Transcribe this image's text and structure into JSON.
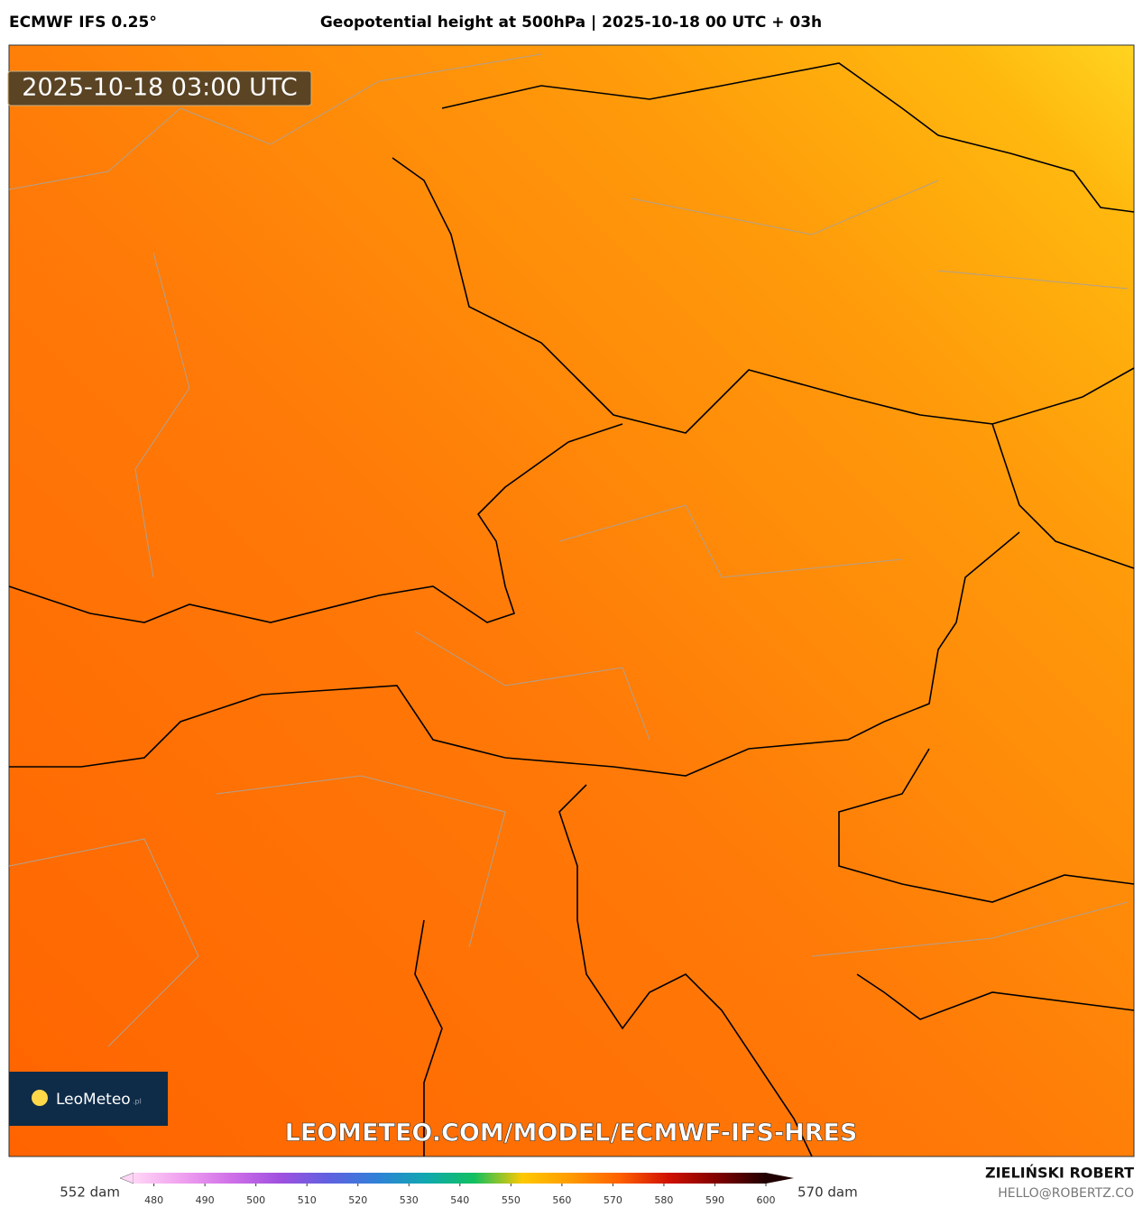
{
  "header": {
    "model": "ECMWF IFS 0.25°",
    "title": "Geopotential height at 500hPa | 2025-10-18 00 UTC + 03h"
  },
  "timestamp": "2025-10-18 03:00 UTC",
  "logo": {
    "name": "LeoMeteo",
    "suffix": ".pl"
  },
  "watermark": "LEOMETEO.COM/MODEL/ECMWF-IFS-HRES",
  "footer": {
    "author": "ZIELIŃSKI ROBERT",
    "email": "HELLO@ROBERTZ.CO"
  },
  "legend": {
    "min_label": "552 dam",
    "max_label": "570 dam",
    "lim": [
      476,
      600
    ],
    "ticks": [
      480,
      490,
      500,
      510,
      520,
      530,
      540,
      550,
      560,
      570,
      580,
      590,
      600
    ],
    "colors": [
      "#ffd6f5",
      "#f0a0f0",
      "#d070e8",
      "#a050e0",
      "#6060e0",
      "#3080d8",
      "#10a8b0",
      "#10c060",
      "#ffc800",
      "#ff9a00",
      "#ff6000",
      "#d01000",
      "#800000",
      "#200000"
    ]
  }
}
